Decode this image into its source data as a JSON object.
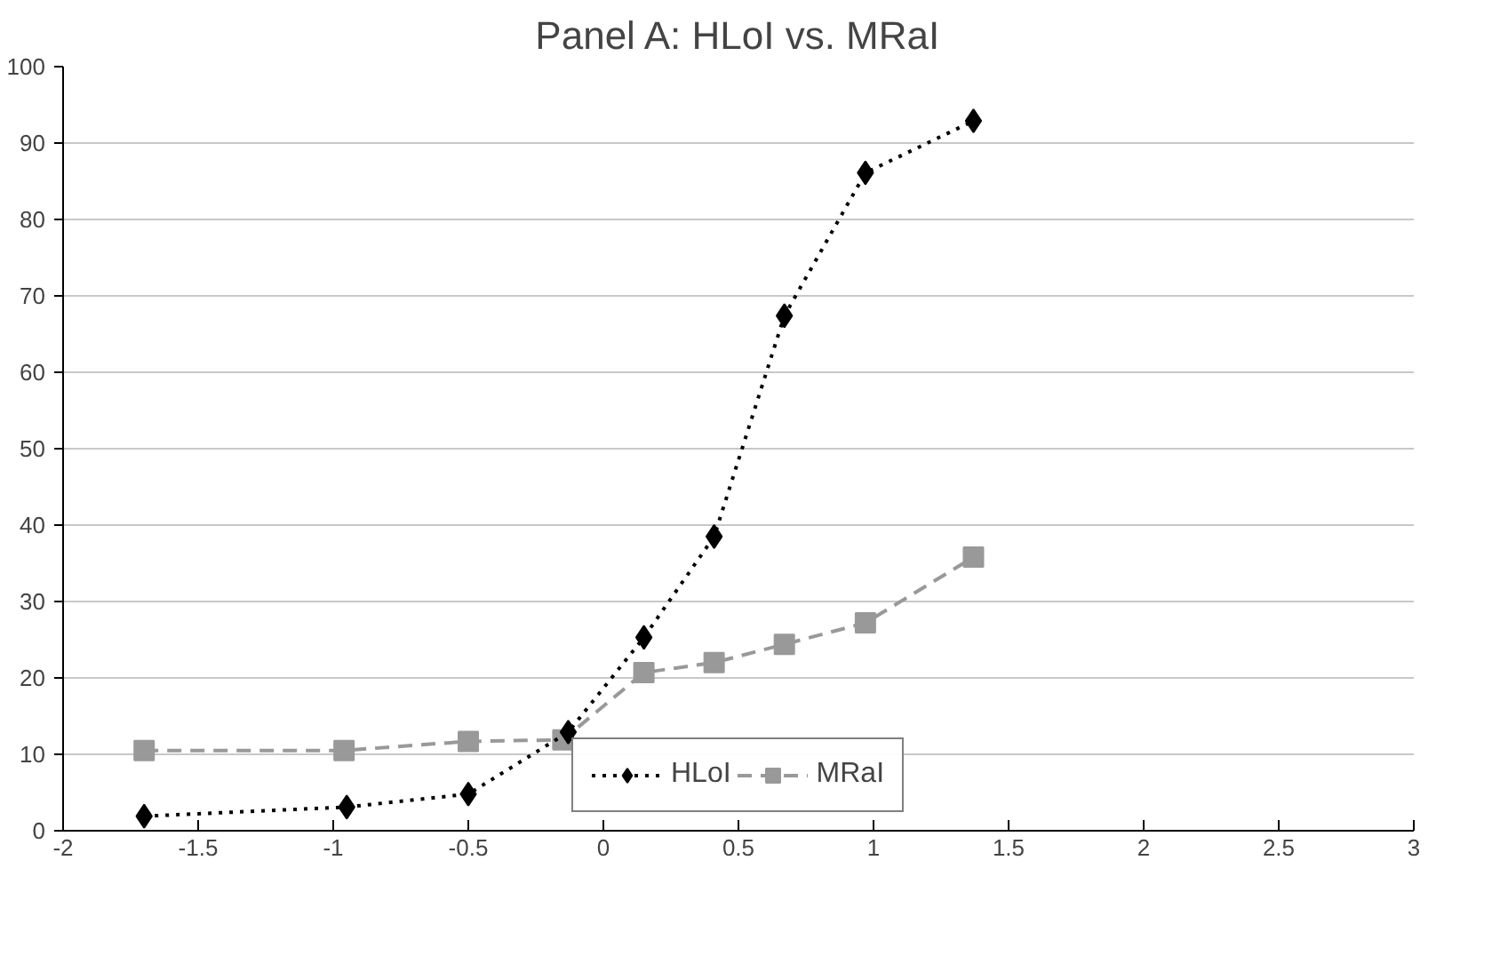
{
  "chart_data": {
    "type": "line",
    "title": "Panel A: HLoI vs. MRaI",
    "xlim": [
      -2,
      3
    ],
    "xticks": [
      -2,
      -1.5,
      -1,
      -0.5,
      0,
      0.5,
      1,
      1.5,
      2,
      2.5,
      3
    ],
    "ylim": [
      0,
      100
    ],
    "yticks": [
      0,
      10,
      20,
      30,
      40,
      50,
      60,
      70,
      80,
      90,
      100
    ],
    "grid": "y",
    "legend": "bottom",
    "series": [
      {
        "name": "HLoI",
        "color": "#000000",
        "marker": "diamond",
        "line_style": "dotted",
        "x": [
          -1.7,
          -0.95,
          -0.5,
          -0.13,
          0.15,
          0.41,
          0.67,
          0.97,
          1.37
        ],
        "values": [
          1.9,
          3.1,
          4.8,
          12.9,
          25.3,
          38.5,
          67.4,
          86.1,
          92.9
        ]
      },
      {
        "name": "MRaI",
        "color": "#999999",
        "marker": "square",
        "line_style": "dashed",
        "x": [
          -1.7,
          -0.96,
          -0.5,
          -0.15,
          0.15,
          0.41,
          0.67,
          0.97,
          1.37
        ],
        "values": [
          10.5,
          10.5,
          11.7,
          11.9,
          20.7,
          22.0,
          24.4,
          27.2,
          35.8
        ]
      }
    ]
  }
}
